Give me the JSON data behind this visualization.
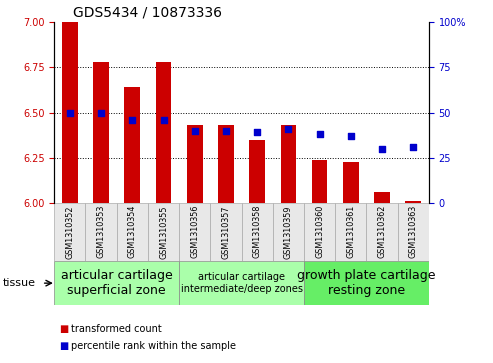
{
  "title": "GDS5434 / 10873336",
  "samples": [
    "GSM1310352",
    "GSM1310353",
    "GSM1310354",
    "GSM1310355",
    "GSM1310356",
    "GSM1310357",
    "GSM1310358",
    "GSM1310359",
    "GSM1310360",
    "GSM1310361",
    "GSM1310362",
    "GSM1310363"
  ],
  "transformed_count": [
    7.0,
    6.78,
    6.64,
    6.78,
    6.43,
    6.43,
    6.35,
    6.43,
    6.24,
    6.23,
    6.06,
    6.01
  ],
  "percentile_rank": [
    50,
    50,
    46,
    46,
    40,
    40,
    39,
    41,
    38,
    37,
    30,
    31
  ],
  "ylim_left": [
    6.0,
    7.0
  ],
  "ylim_right": [
    0,
    100
  ],
  "yticks_left": [
    6.0,
    6.25,
    6.5,
    6.75,
    7.0
  ],
  "yticks_right": [
    0,
    25,
    50,
    75,
    100
  ],
  "bar_color": "#cc0000",
  "dot_color": "#0000cc",
  "tissue_groups": [
    {
      "label": "articular cartilage\nsuperficial zone",
      "start": 0,
      "end": 4,
      "color": "#aaffaa",
      "fontsize": 9
    },
    {
      "label": "articular cartilage\nintermediate/deep zones",
      "start": 4,
      "end": 8,
      "color": "#aaffaa",
      "fontsize": 7
    },
    {
      "label": "growth plate cartilage\nresting zone",
      "start": 8,
      "end": 12,
      "color": "#66ee66",
      "fontsize": 9
    }
  ],
  "tissue_label": "tissue",
  "legend_bar_label": "transformed count",
  "legend_dot_label": "percentile rank within the sample",
  "bar_width": 0.5,
  "title_fontsize": 10,
  "tick_fontsize": 7,
  "sample_fontsize": 5.8,
  "bg_color": "#e8e8e8"
}
